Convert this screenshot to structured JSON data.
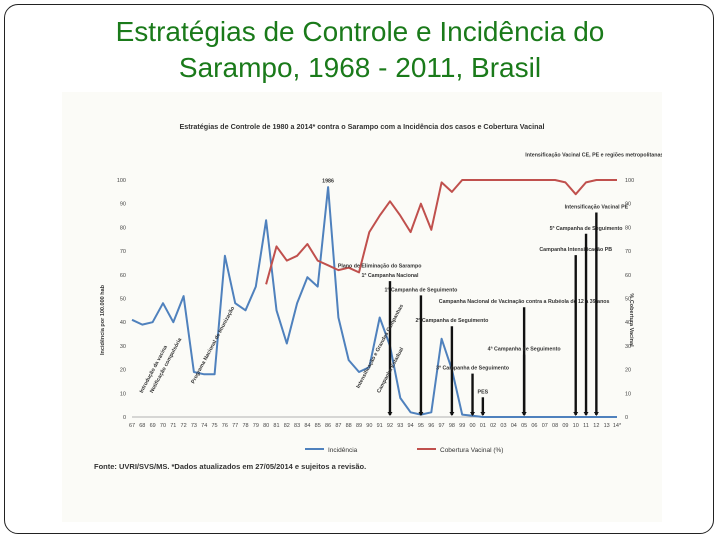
{
  "slide": {
    "title_line1": "Estratégias de Controle e Incidência do",
    "title_line2": "Sarampo, 1968 - 2011, Brasil"
  },
  "chart_data": {
    "type": "line",
    "title": "Estratégias de Controle de 1980 a 2014* contra o Sarampo com a Incidência dos casos e Cobertura Vacinal",
    "ylabel_left": "Incidência por 100.000 hab",
    "ylabel_right": "% Cobertura Vacinal",
    "ylim": [
      0,
      100
    ],
    "yticks": [
      0,
      10,
      20,
      30,
      40,
      50,
      60,
      70,
      80,
      90,
      100
    ],
    "categories": [
      "67",
      "68",
      "69",
      "70",
      "71",
      "72",
      "73",
      "74",
      "75",
      "76",
      "77",
      "78",
      "79",
      "80",
      "81",
      "82",
      "83",
      "84",
      "85",
      "86",
      "87",
      "88",
      "89",
      "90",
      "91",
      "92",
      "93",
      "94",
      "95",
      "96",
      "97",
      "98",
      "99",
      "00",
      "01",
      "02",
      "03",
      "04",
      "05",
      "06",
      "07",
      "08",
      "09",
      "10",
      "11",
      "12",
      "13",
      "14*"
    ],
    "series": [
      {
        "name": "Incidência",
        "color": "#4f81bd",
        "values": [
          41,
          39,
          40,
          48,
          40,
          51,
          19,
          18,
          18,
          68,
          48,
          45,
          55,
          83,
          45,
          31,
          48,
          59,
          55,
          97,
          42,
          24,
          19,
          21,
          42,
          30,
          8,
          2,
          1,
          2,
          33,
          20,
          1,
          0.5,
          0,
          0,
          0,
          0,
          0,
          0,
          0,
          0,
          0,
          0,
          0,
          0,
          0,
          0
        ]
      },
      {
        "name": "Cobertura Vacinal (%)",
        "color": "#c0504d",
        "values": [
          null,
          null,
          null,
          null,
          null,
          null,
          null,
          null,
          null,
          null,
          null,
          null,
          null,
          56,
          72,
          66,
          68,
          73,
          66,
          64,
          62,
          63,
          61,
          78,
          85,
          91,
          85,
          78,
          90,
          79,
          99,
          95,
          100,
          100,
          100,
          100,
          100,
          100,
          100,
          100,
          100,
          100,
          99,
          94,
          99,
          100,
          100,
          100
        ]
      }
    ],
    "annotations": [
      {
        "text": "Introdução da vacina",
        "x": "68",
        "y": 10
      },
      {
        "text": "Notificação compulsória",
        "x": "69",
        "y": 10
      },
      {
        "text": "Programa Nacional de Imunização",
        "x": "73",
        "y": 14
      },
      {
        "text": "1986",
        "x": "86",
        "y": 99
      },
      {
        "text": "Plano de Eliminação do Sarampo",
        "x": "91",
        "y": 63
      },
      {
        "text": "1ª Campanha Nacional",
        "x": "92",
        "y": 59
      },
      {
        "text": "Intensificação e Grandes Campanhas",
        "x": "89",
        "y": 12
      },
      {
        "text": "Campanha Estadual",
        "x": "91",
        "y": 10
      },
      {
        "text": "1ª Campanha de Seguimento",
        "x": "95",
        "y": 53
      },
      {
        "text": "2ª Campanha de Seguimento",
        "x": "98",
        "y": 40
      },
      {
        "text": "3ª Campanha de Seguimento",
        "x": "00",
        "y": 20
      },
      {
        "text": "PES",
        "x": "01",
        "y": 10
      },
      {
        "text": "Campanha Nacional de Vacinação contra a Rubéola de 12 a 39 anos",
        "x": "05",
        "y": 48
      },
      {
        "text": "4ª Campanha de Seguimento",
        "x": "05",
        "y": 28
      },
      {
        "text": "Campanha Intensificação PB",
        "x": "10",
        "y": 70
      },
      {
        "text": "5ª Campanha de Seguimento",
        "x": "11",
        "y": 79
      },
      {
        "text": "Intensificação Vacinal PE",
        "x": "12",
        "y": 88
      },
      {
        "text": "Intensificação Vacinal CE, PE e regiões metropolitanas incidente",
        "x": "13",
        "y": 110
      }
    ],
    "source": "Fonte: UVRI/SVS/MS. *Dados atualizados em 27/05/2014 e sujeitos a revisão.",
    "grid": false,
    "legend": "bottom-center"
  }
}
